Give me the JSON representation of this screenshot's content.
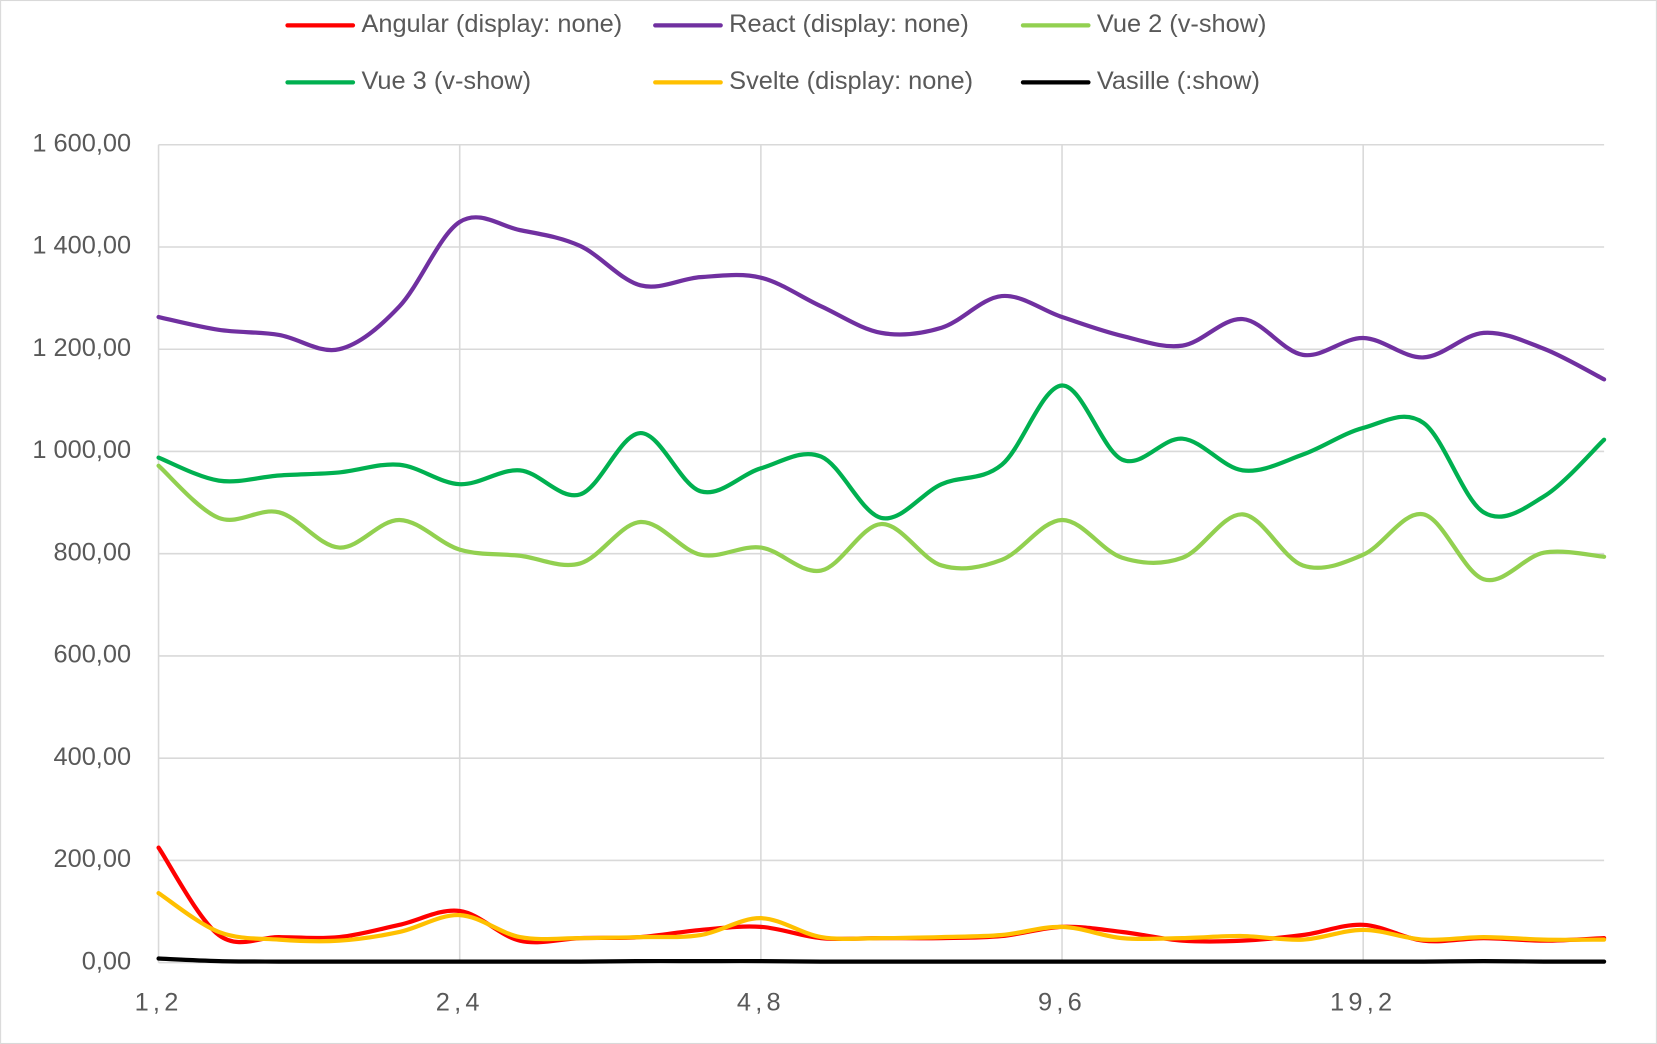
{
  "chart_data": {
    "type": "line",
    "categories": [
      "1,2",
      null,
      null,
      null,
      null,
      "2,4",
      null,
      null,
      null,
      null,
      "4,8",
      null,
      null,
      null,
      null,
      "9,6",
      null,
      null,
      null,
      null,
      "19,2",
      null,
      null,
      null,
      null
    ],
    "ylim": [
      0,
      1600
    ],
    "yticks": [
      {
        "value": 0,
        "label": "0,00"
      },
      {
        "value": 200,
        "label": "200,00"
      },
      {
        "value": 400,
        "label": "400,00"
      },
      {
        "value": 600,
        "label": "600,00"
      },
      {
        "value": 800,
        "label": "800,00"
      },
      {
        "value": 1000,
        "label": "1 000,00"
      },
      {
        "value": 1200,
        "label": "1 200,00"
      },
      {
        "value": 1400,
        "label": "1 400,00"
      },
      {
        "value": 1600,
        "label": "1 600,00"
      }
    ],
    "grid": true,
    "legend": "top",
    "series": [
      {
        "name": "Angular (display: none)",
        "color": "#ff0000",
        "values": [
          225,
          54,
          50,
          50,
          74,
          101,
          43,
          48,
          50,
          64,
          70,
          48,
          48,
          48,
          52,
          70,
          60,
          43,
          43,
          54,
          74,
          43,
          48,
          43,
          48
        ]
      },
      {
        "name": "React (display: none)",
        "color": "#7030a0",
        "values": [
          1263,
          1238,
          1228,
          1200,
          1284,
          1449,
          1433,
          1402,
          1325,
          1341,
          1340,
          1284,
          1232,
          1242,
          1304,
          1263,
          1226,
          1207,
          1259,
          1189,
          1222,
          1184,
          1232,
          1201,
          1141
        ]
      },
      {
        "name": "Vue 2 (v-show)",
        "color": "#92d050",
        "values": [
          972,
          870,
          881,
          812,
          866,
          808,
          796,
          781,
          862,
          798,
          812,
          767,
          858,
          777,
          788,
          866,
          792,
          792,
          877,
          777,
          798,
          877,
          750,
          802,
          794
        ]
      },
      {
        "name": "Vue 3 (v-show)",
        "color": "#00b050",
        "values": [
          988,
          943,
          953,
          959,
          974,
          936,
          963,
          916,
          1036,
          922,
          967,
          990,
          870,
          936,
          974,
          1129,
          984,
          1025,
          963,
          994,
          1046,
          1056,
          881,
          912,
          1023
        ]
      },
      {
        "name": "Svelte (display: none)",
        "color": "#ffc000",
        "values": [
          136,
          60,
          45,
          43,
          60,
          93,
          50,
          48,
          50,
          54,
          87,
          50,
          48,
          50,
          54,
          70,
          48,
          48,
          52,
          45,
          64,
          45,
          50,
          45,
          45
        ]
      },
      {
        "name": "Vasille (:show)",
        "color": "#000000",
        "values": [
          8,
          3,
          2,
          2,
          2,
          2,
          2,
          2,
          3,
          3,
          3,
          2,
          2,
          2,
          2,
          2,
          2,
          2,
          2,
          2,
          2,
          2,
          3,
          2,
          2
        ]
      }
    ]
  }
}
